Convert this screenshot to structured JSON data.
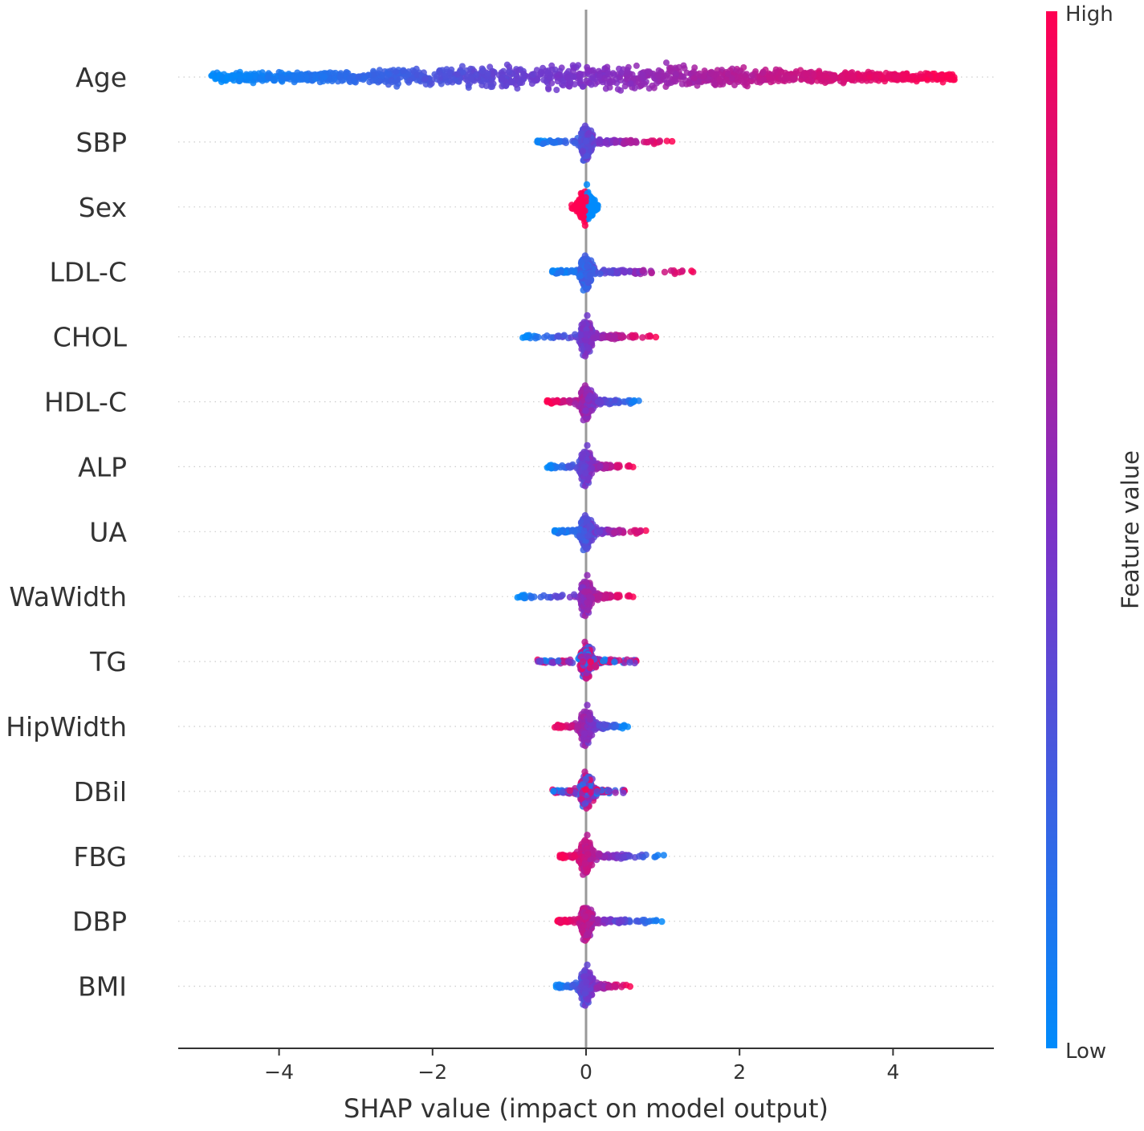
{
  "chart_data": {
    "type": "scatter",
    "subtype": "shap-beeswarm-summary",
    "title": "",
    "xlabel": "SHAP value (impact on model output)",
    "ylabel": "",
    "xlim": [
      -5.3,
      5.35
    ],
    "xticks": [
      -4,
      -2,
      0,
      2,
      4
    ],
    "xtick_labels": [
      "−4",
      "−2",
      "0",
      "2",
      "4"
    ],
    "reference_line_x": 0,
    "colorbar": {
      "title": "Feature value",
      "high_label": "High",
      "low_label": "Low",
      "high_color": "#ff0052",
      "mid_color": "#7c31c7",
      "low_color": "#008bfb"
    },
    "features": [
      {
        "name": "Age",
        "min": -4.9,
        "max": 4.8,
        "trend": "positive"
      },
      {
        "name": "SBP",
        "min": -0.65,
        "max": 1.15,
        "trend": "positive"
      },
      {
        "name": "Sex",
        "min": -0.45,
        "max": 0.42,
        "trend": "negative"
      },
      {
        "name": "LDL-C",
        "min": -0.45,
        "max": 1.5,
        "trend": "positive"
      },
      {
        "name": "CHOL",
        "min": -0.85,
        "max": 0.92,
        "trend": "positive"
      },
      {
        "name": "HDL-C",
        "min": -0.52,
        "max": 0.75,
        "trend": "negative"
      },
      {
        "name": "ALP",
        "min": -0.52,
        "max": 0.62,
        "trend": "positive"
      },
      {
        "name": "UA",
        "min": -0.42,
        "max": 0.85,
        "trend": "positive"
      },
      {
        "name": "WaWidth",
        "min": -0.92,
        "max": 0.62,
        "trend": "positive"
      },
      {
        "name": "TG",
        "min": -0.65,
        "max": 0.68,
        "trend": "mixed"
      },
      {
        "name": "HipWidth",
        "min": -0.42,
        "max": 0.55,
        "trend": "negative"
      },
      {
        "name": "DBil",
        "min": -0.45,
        "max": 0.52,
        "trend": "mixed"
      },
      {
        "name": "FBG",
        "min": -0.35,
        "max": 1.12,
        "trend": "negative"
      },
      {
        "name": "DBP",
        "min": -0.38,
        "max": 1.0,
        "trend": "negative"
      },
      {
        "name": "BMI",
        "min": -0.4,
        "max": 0.58,
        "trend": "positive"
      }
    ]
  }
}
